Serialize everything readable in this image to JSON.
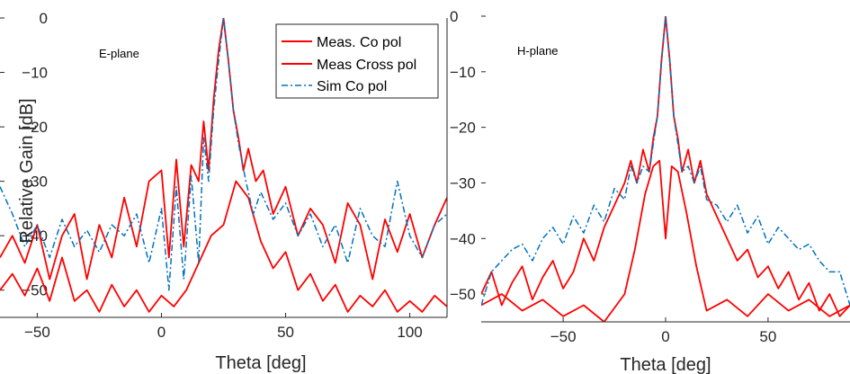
{
  "chart_data": [
    {
      "type": "line",
      "annotation": "E-plane",
      "xlabel": "Theta [deg]",
      "ylabel": "Relative Gain [dB]",
      "xlim": [
        -65,
        115
      ],
      "ylim": [
        -55,
        0
      ],
      "xticks": [
        -50,
        0,
        50,
        100
      ],
      "yticks": [
        0,
        -10,
        -20,
        -30,
        -40,
        -50
      ],
      "legend": {
        "placement": "top-right",
        "entries": [
          "Meas. Co pol",
          "Meas Cross pol",
          "Sim Co pol"
        ]
      },
      "series": [
        {
          "name": "Meas. Co pol",
          "color": "#ff0000",
          "style": "solid",
          "x": [
            -65,
            -60,
            -55,
            -50,
            -45,
            -40,
            -35,
            -30,
            -25,
            -20,
            -15,
            -10,
            -5,
            0,
            3,
            6,
            9,
            12,
            15,
            17,
            19,
            21,
            23,
            25,
            27,
            29,
            31,
            33,
            35,
            38,
            41,
            45,
            50,
            55,
            60,
            65,
            70,
            75,
            80,
            85,
            90,
            95,
            100,
            105,
            110,
            115
          ],
          "y": [
            -44,
            -40,
            -45,
            -38,
            -48,
            -40,
            -36,
            -48,
            -38,
            -44,
            -33,
            -42,
            -30,
            -28,
            -44,
            -26,
            -42,
            -27,
            -30,
            -19,
            -28,
            -15,
            -6,
            0,
            -8,
            -17,
            -22,
            -28,
            -24,
            -30,
            -28,
            -36,
            -31,
            -40,
            -35,
            -38,
            -45,
            -34,
            -38,
            -48,
            -37,
            -43,
            -36,
            -44,
            -38,
            -33
          ]
        },
        {
          "name": "Meas Cross pol",
          "color": "#ff0000",
          "style": "solid",
          "x": [
            -65,
            -60,
            -55,
            -50,
            -45,
            -40,
            -35,
            -30,
            -25,
            -20,
            -15,
            -10,
            -5,
            0,
            5,
            10,
            15,
            20,
            25,
            30,
            35,
            40,
            45,
            50,
            55,
            60,
            65,
            70,
            75,
            80,
            85,
            90,
            95,
            100,
            105,
            110,
            115
          ],
          "y": [
            -50,
            -47,
            -51,
            -46,
            -52,
            -44,
            -52,
            -50,
            -54,
            -49,
            -53,
            -50,
            -54,
            -51,
            -53,
            -50,
            -45,
            -40,
            -38,
            -30,
            -33,
            -41,
            -46,
            -43,
            -50,
            -47,
            -52,
            -49,
            -54,
            -51,
            -53,
            -50,
            -54,
            -52,
            -54,
            -51,
            -53
          ]
        },
        {
          "name": "Sim Co pol",
          "color": "#0072bd",
          "style": "dashdot",
          "x": [
            -65,
            -60,
            -55,
            -50,
            -45,
            -40,
            -35,
            -30,
            -25,
            -20,
            -15,
            -10,
            -5,
            0,
            3,
            6,
            9,
            12,
            15,
            17,
            19,
            21,
            23,
            25,
            27,
            29,
            31,
            34,
            37,
            40,
            45,
            50,
            55,
            60,
            65,
            70,
            75,
            80,
            85,
            90,
            95,
            100,
            105,
            110,
            115
          ],
          "y": [
            -31,
            -36,
            -42,
            -38,
            -44,
            -37,
            -42,
            -39,
            -43,
            -38,
            -40,
            -36,
            -45,
            -35,
            -50,
            -31,
            -48,
            -29,
            -45,
            -22,
            -30,
            -17,
            -8,
            0,
            -8,
            -17,
            -23,
            -30,
            -36,
            -32,
            -37,
            -34,
            -40,
            -36,
            -42,
            -38,
            -45,
            -35,
            -40,
            -42,
            -30,
            -40,
            -44,
            -38,
            -36
          ]
        }
      ]
    },
    {
      "type": "line",
      "annotation": "H-plane",
      "xlabel": "Theta [deg]",
      "ylabel": "",
      "xlim": [
        -90,
        90
      ],
      "ylim": [
        -55,
        0
      ],
      "xticks": [
        -50,
        0,
        50
      ],
      "yticks": [
        0,
        -10,
        -20,
        -30,
        -40,
        -50
      ],
      "series": [
        {
          "name": "Meas. Co pol",
          "color": "#ff0000",
          "style": "solid",
          "x": [
            -90,
            -85,
            -80,
            -75,
            -70,
            -65,
            -60,
            -55,
            -50,
            -45,
            -40,
            -35,
            -30,
            -25,
            -20,
            -17,
            -14,
            -11,
            -8,
            -6,
            -4,
            -2,
            0,
            2,
            4,
            6,
            8,
            11,
            14,
            17,
            20,
            25,
            30,
            35,
            40,
            45,
            50,
            55,
            60,
            65,
            70,
            75,
            80,
            85,
            90
          ],
          "y": [
            -50,
            -46,
            -52,
            -48,
            -45,
            -51,
            -47,
            -44,
            -49,
            -46,
            -40,
            -44,
            -38,
            -34,
            -30,
            -26,
            -30,
            -24,
            -28,
            -22,
            -18,
            -8,
            0,
            -8,
            -18,
            -22,
            -28,
            -24,
            -30,
            -26,
            -32,
            -36,
            -40,
            -44,
            -42,
            -47,
            -45,
            -49,
            -46,
            -51,
            -48,
            -53,
            -50,
            -54,
            -52
          ]
        },
        {
          "name": "Meas Cross pol",
          "color": "#ff0000",
          "style": "solid",
          "x": [
            -90,
            -80,
            -70,
            -60,
            -50,
            -40,
            -30,
            -20,
            -15,
            -10,
            -6,
            -3,
            0,
            3,
            6,
            10,
            15,
            20,
            30,
            40,
            50,
            60,
            70,
            80,
            90
          ],
          "y": [
            -52,
            -50,
            -53,
            -51,
            -54,
            -52,
            -55,
            -50,
            -42,
            -32,
            -27,
            -26,
            -40,
            -27,
            -28,
            -35,
            -45,
            -53,
            -51,
            -54,
            -50,
            -53,
            -51,
            -54,
            -52
          ]
        },
        {
          "name": "Sim Co pol",
          "color": "#0072bd",
          "style": "dashdot",
          "x": [
            -90,
            -85,
            -80,
            -75,
            -70,
            -65,
            -60,
            -55,
            -50,
            -45,
            -40,
            -35,
            -30,
            -25,
            -20,
            -17,
            -14,
            -11,
            -8,
            -6,
            -4,
            -2,
            0,
            2,
            4,
            6,
            8,
            11,
            14,
            17,
            20,
            25,
            30,
            35,
            40,
            45,
            50,
            55,
            60,
            65,
            70,
            75,
            80,
            85,
            90
          ],
          "y": [
            -52,
            -46,
            -44,
            -42,
            -41,
            -44,
            -40,
            -38,
            -41,
            -36,
            -39,
            -34,
            -37,
            -31,
            -33,
            -27,
            -30,
            -27,
            -28,
            -23,
            -18,
            -8,
            0,
            -8,
            -18,
            -23,
            -28,
            -27,
            -30,
            -27,
            -33,
            -34,
            -37,
            -34,
            -39,
            -36,
            -41,
            -38,
            -40,
            -42,
            -41,
            -44,
            -46,
            -46,
            -52
          ]
        }
      ]
    }
  ]
}
